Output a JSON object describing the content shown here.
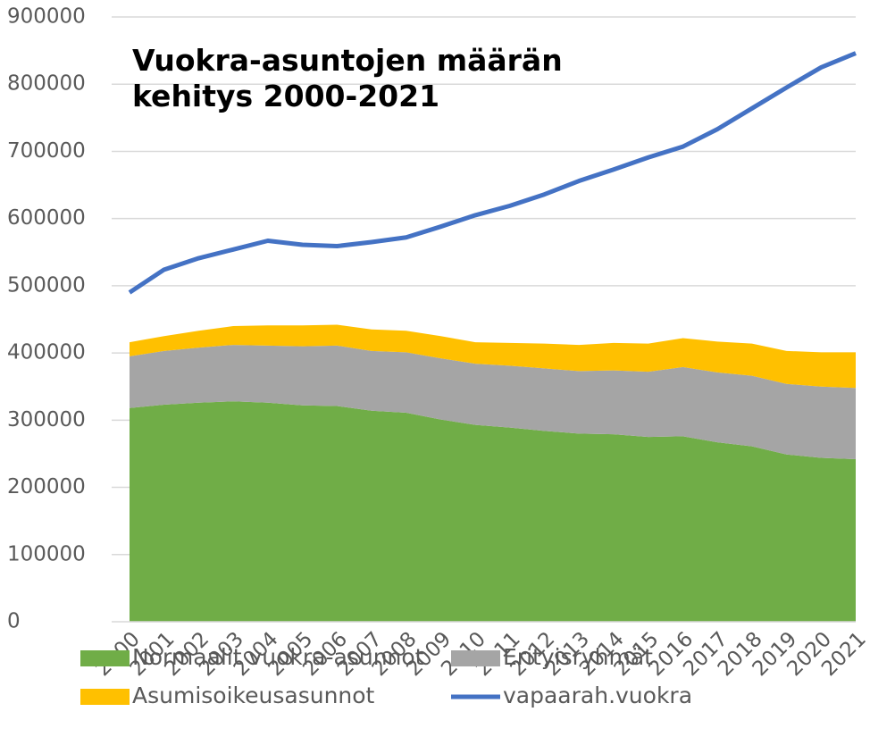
{
  "chart_data": {
    "type": "stacked_area_line",
    "title": "Vuokra-asuntojen määrän kehitys 2000-2021",
    "categories": [
      "2000",
      "2001",
      "2002",
      "2003",
      "2004",
      "2005",
      "2006",
      "2007",
      "2008",
      "2009",
      "2010",
      "2011",
      "2012",
      "2013",
      "2014",
      "2015",
      "2016",
      "2017",
      "2018",
      "2019",
      "2020",
      "2021"
    ],
    "series": [
      {
        "name": "Normaalit vuokra-asunnot",
        "color": "#70ad47",
        "kind": "area",
        "values": [
          318000,
          323000,
          326000,
          328000,
          326000,
          322000,
          321000,
          314000,
          311000,
          301000,
          293000,
          289000,
          284000,
          280000,
          279000,
          275000,
          276000,
          267000,
          261000,
          249000,
          244000,
          242000
        ]
      },
      {
        "name": "Erityisryhmät",
        "color": "#a5a5a5",
        "kind": "area",
        "values": [
          77000,
          80000,
          82000,
          84000,
          85000,
          88000,
          90000,
          89000,
          90000,
          91000,
          91000,
          92000,
          93000,
          93000,
          95000,
          97000,
          103000,
          104000,
          105000,
          105000,
          106000,
          106000
        ]
      },
      {
        "name": "Asumisoikeusasunnot",
        "color": "#ffc000",
        "kind": "area",
        "values": [
          21000,
          22000,
          25000,
          28000,
          30000,
          31000,
          31000,
          32000,
          32000,
          33000,
          32000,
          34000,
          37000,
          39000,
          41000,
          42000,
          43000,
          46000,
          48000,
          49000,
          51000,
          53000
        ]
      },
      {
        "name": "vapaarah.vuokra",
        "color": "#4472c4",
        "kind": "line",
        "values": [
          490000,
          524000,
          541000,
          554000,
          567000,
          561000,
          559000,
          565000,
          572000,
          588000,
          605000,
          619000,
          636000,
          656000,
          673000,
          691000,
          707000,
          733000,
          764000,
          795000,
          825000,
          846000
        ]
      }
    ],
    "ylim": [
      0,
      900000
    ],
    "yticks": [
      0,
      100000,
      200000,
      300000,
      400000,
      500000,
      600000,
      700000,
      800000,
      900000
    ],
    "grid": true
  }
}
